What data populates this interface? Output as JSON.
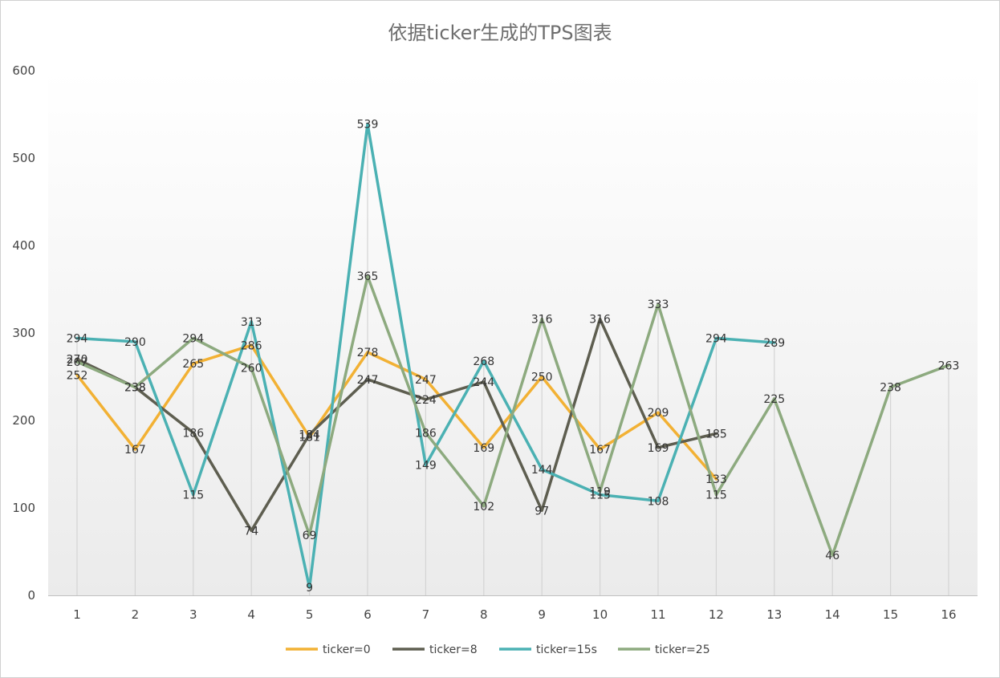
{
  "chart_data": {
    "type": "line",
    "title": "依据ticker生成的TPS图表",
    "categories": [
      "1",
      "2",
      "3",
      "4",
      "5",
      "6",
      "7",
      "8",
      "9",
      "10",
      "11",
      "12",
      "13",
      "14",
      "15",
      "16"
    ],
    "ylim": [
      0,
      600
    ],
    "yticks": [
      0,
      100,
      200,
      300,
      400,
      500,
      600
    ],
    "grid": "vertical drop lines at each category",
    "legend_position": "bottom",
    "data_labels": true,
    "series": [
      {
        "name": "ticker=0",
        "color": "#F2B134",
        "values": [
          252,
          167,
          265,
          286,
          181,
          278,
          247,
          169,
          250,
          167,
          209,
          133,
          null,
          null,
          null,
          null
        ]
      },
      {
        "name": "ticker=8",
        "color": "#5E5E50",
        "values": [
          270,
          238,
          186,
          74,
          184,
          247,
          224,
          244,
          97,
          316,
          169,
          185,
          null,
          null,
          null,
          null
        ]
      },
      {
        "name": "ticker=15s",
        "color": "#4BB1B3",
        "values": [
          294,
          290,
          115,
          313,
          9,
          539,
          149,
          268,
          144,
          115,
          108,
          294,
          289,
          null,
          null,
          null
        ]
      },
      {
        "name": "ticker=25",
        "color": "#8DAA7F",
        "values": [
          267,
          238,
          294,
          260,
          69,
          365,
          186,
          102,
          316,
          119,
          333,
          115,
          225,
          46,
          238,
          263
        ]
      }
    ]
  }
}
